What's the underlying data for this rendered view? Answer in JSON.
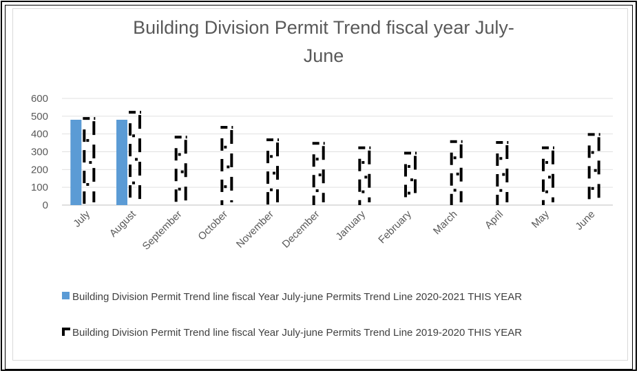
{
  "chart_data": {
    "type": "bar",
    "title": "Building Division Permit Trend fiscal year July-June",
    "title_lines": [
      "Building Division Permit Trend fiscal year July-",
      "June"
    ],
    "categories": [
      "July",
      "August",
      "September",
      "October",
      "November",
      "December",
      "January",
      "February",
      "March",
      "April",
      "May",
      "June"
    ],
    "series": [
      {
        "name": "Building Division Permit Trend line fiscal Year July-june Permits Trend Line 2020-2021 THIS YEAR",
        "values": [
          480,
          480,
          null,
          null,
          null,
          null,
          null,
          null,
          null,
          null,
          null,
          null
        ],
        "color": "#5b9bd5"
      },
      {
        "name": "Building Division Permit Trend line fiscal Year July-june Permits Trend Line 2019-2020 THIS YEAR",
        "values": [
          495,
          530,
          390,
          445,
          375,
          355,
          330,
          300,
          365,
          360,
          330,
          405
        ],
        "color": "#000000"
      }
    ],
    "ylim": [
      0,
      600
    ],
    "yticks": [
      0,
      100,
      200,
      300,
      400,
      500,
      600
    ],
    "grid": true,
    "legend_position": "bottom"
  }
}
